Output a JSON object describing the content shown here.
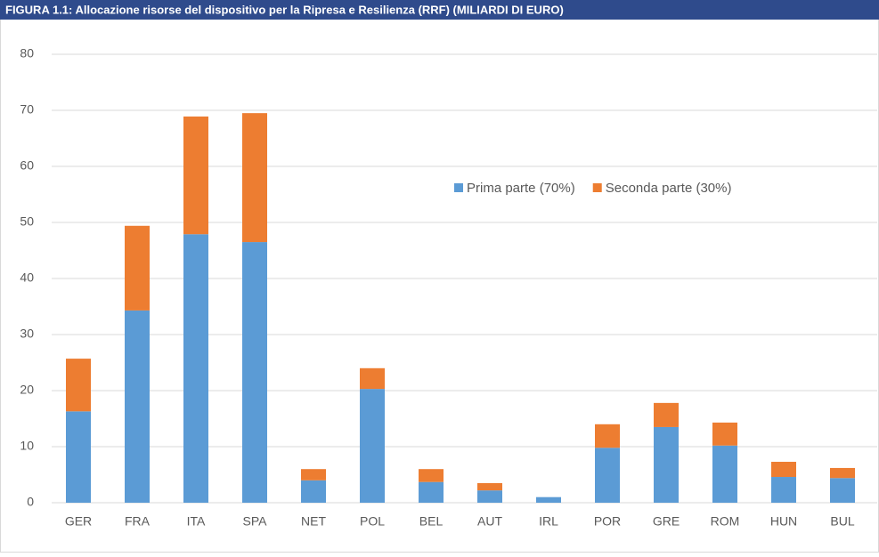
{
  "chart_data": {
    "type": "stacked_bar",
    "title": "FIGURA 1.1: Allocazione risorse del dispositivo per la Ripresa e Resilienza (RRF) (MILIARDI DI EURO)",
    "categories": [
      "GER",
      "FRA",
      "ITA",
      "SPA",
      "NET",
      "POL",
      "BEL",
      "AUT",
      "IRL",
      "POR",
      "GRE",
      "ROM",
      "HUN",
      "BUL"
    ],
    "series": [
      {
        "name": "Prima parte (70%)",
        "color": "#5b9bd5",
        "values": [
          16.3,
          34.3,
          47.9,
          46.5,
          4.0,
          20.3,
          3.7,
          2.2,
          1.0,
          9.8,
          13.5,
          10.2,
          4.6,
          4.4
        ]
      },
      {
        "name": "Seconda parte (30%)",
        "color": "#ed7d31",
        "values": [
          9.4,
          15.1,
          21.0,
          23.0,
          2.0,
          3.7,
          2.3,
          1.3,
          0,
          4.2,
          4.3,
          4.1,
          2.7,
          1.8
        ]
      }
    ],
    "ylim": [
      0,
      80
    ],
    "yticks": [
      0,
      10,
      20,
      30,
      40,
      50,
      60,
      70,
      80
    ],
    "grid": true,
    "legend": "upper right"
  }
}
